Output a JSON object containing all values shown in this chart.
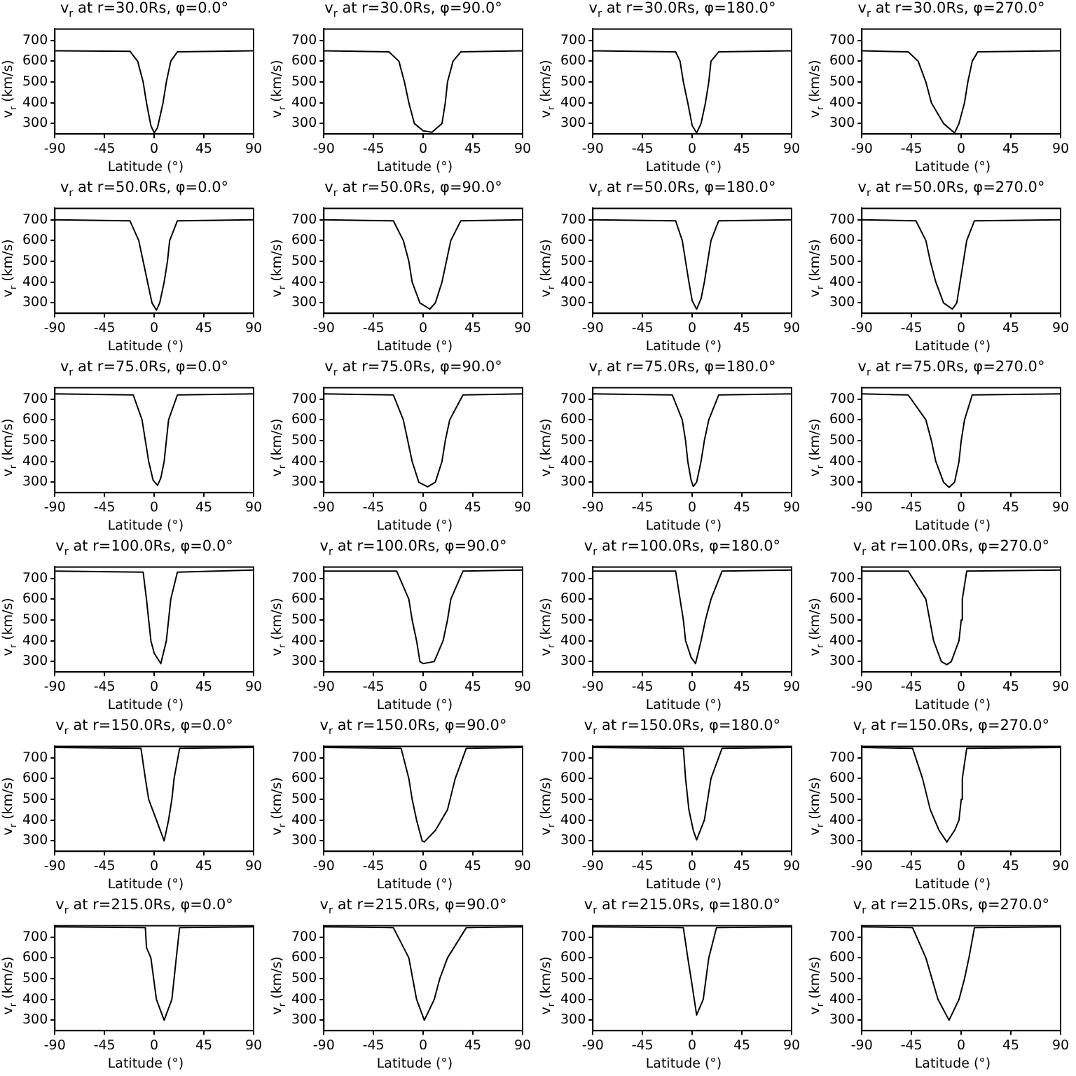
{
  "chart_data": [
    {
      "type": "line",
      "title": "v$_{r}$ at r=30.0Rs, φ=0.0°",
      "xlabel": "Latitude (°)",
      "ylabel": "v$_{r}$ (km/s)",
      "color": "#000000",
      "xlim": [
        -90,
        90
      ],
      "ylim": [
        250,
        755
      ],
      "xticks": [
        -90,
        -45,
        0,
        45,
        90
      ],
      "yticks": [
        300,
        400,
        500,
        600,
        700
      ],
      "x": [
        -90,
        -22,
        -15,
        -10,
        -7,
        -3,
        0,
        3,
        8,
        11,
        15,
        21,
        90
      ],
      "values": [
        650,
        648,
        600,
        500,
        400,
        290,
        255,
        280,
        400,
        500,
        600,
        645,
        650
      ]
    },
    {
      "type": "line",
      "title": "v$_{r}$ at r=30.0Rs, φ=90.0°",
      "xlabel": "Latitude (°)",
      "ylabel": "v$_{r}$ (km/s)",
      "color": "#000000",
      "xlim": [
        -90,
        90
      ],
      "ylim": [
        250,
        755
      ],
      "xticks": [
        -90,
        -45,
        0,
        45,
        90
      ],
      "yticks": [
        300,
        400,
        500,
        600,
        700
      ],
      "x": [
        -90,
        -31,
        -22,
        -17,
        -13,
        -8,
        0,
        8,
        17,
        20,
        22,
        27,
        34,
        90
      ],
      "values": [
        650,
        645,
        600,
        500,
        400,
        300,
        265,
        258,
        300,
        400,
        500,
        600,
        645,
        650
      ]
    },
    {
      "type": "line",
      "title": "v$_{r}$ at r=30.0Rs, φ=180.0°",
      "xlabel": "Latitude (°)",
      "ylabel": "v$_{r}$ (km/s)",
      "color": "#000000",
      "xlim": [
        -90,
        90
      ],
      "ylim": [
        250,
        755
      ],
      "xticks": [
        -90,
        -45,
        0,
        45,
        90
      ],
      "yticks": [
        300,
        400,
        500,
        600,
        700
      ],
      "x": [
        -90,
        -15,
        -11,
        -8,
        -4,
        0,
        4,
        8,
        12,
        15,
        17,
        24,
        90
      ],
      "values": [
        650,
        645,
        600,
        500,
        400,
        290,
        255,
        300,
        400,
        500,
        600,
        645,
        650
      ]
    },
    {
      "type": "line",
      "title": "v$_{r}$ at r=30.0Rs, φ=270.0°",
      "xlabel": "Latitude (°)",
      "ylabel": "v$_{r}$ (km/s)",
      "color": "#000000",
      "xlim": [
        -90,
        90
      ],
      "ylim": [
        250,
        755
      ],
      "xticks": [
        -90,
        -45,
        0,
        45,
        90
      ],
      "yticks": [
        300,
        400,
        500,
        600,
        700
      ],
      "x": [
        -90,
        -48,
        -39,
        -32,
        -27,
        -16,
        -6,
        -2,
        3,
        6,
        10,
        15,
        90
      ],
      "values": [
        650,
        645,
        600,
        500,
        400,
        300,
        255,
        300,
        400,
        500,
        600,
        645,
        650
      ]
    },
    {
      "type": "line",
      "title": "v$_{r}$ at r=50.0Rs, φ=0.0°",
      "xlabel": "Latitude (°)",
      "ylabel": "v$_{r}$ (km/s)",
      "color": "#000000",
      "xlim": [
        -90,
        90
      ],
      "ylim": [
        250,
        755
      ],
      "xticks": [
        -90,
        -45,
        0,
        45,
        90
      ],
      "yticks": [
        300,
        400,
        500,
        600,
        700
      ],
      "x": [
        -90,
        -22,
        -14,
        -10,
        -6,
        -2,
        2,
        5,
        9,
        12,
        14,
        21,
        90
      ],
      "values": [
        700,
        695,
        600,
        500,
        400,
        300,
        265,
        300,
        400,
        500,
        600,
        695,
        700
      ]
    },
    {
      "type": "line",
      "title": "v$_{r}$ at r=50.0Rs, φ=90.0°",
      "xlabel": "Latitude (°)",
      "ylabel": "v$_{r}$ (km/s)",
      "color": "#000000",
      "xlim": [
        -90,
        90
      ],
      "ylim": [
        250,
        755
      ],
      "xticks": [
        -90,
        -45,
        0,
        45,
        90
      ],
      "yticks": [
        300,
        400,
        500,
        600,
        700
      ],
      "x": [
        -90,
        -27,
        -18,
        -13,
        -10,
        -3,
        6,
        11,
        17,
        21,
        25,
        34,
        90
      ],
      "values": [
        700,
        695,
        600,
        500,
        400,
        300,
        270,
        300,
        400,
        500,
        600,
        695,
        700
      ]
    },
    {
      "type": "line",
      "title": "v$_{r}$ at r=50.0Rs, φ=180.0°",
      "xlabel": "Latitude (°)",
      "ylabel": "v$_{r}$ (km/s)",
      "color": "#000000",
      "xlim": [
        -90,
        90
      ],
      "ylim": [
        250,
        755
      ],
      "xticks": [
        -90,
        -45,
        0,
        45,
        90
      ],
      "yticks": [
        300,
        400,
        500,
        600,
        700
      ],
      "x": [
        -90,
        -15,
        -9,
        -6,
        -3,
        0,
        4,
        8,
        11,
        14,
        17,
        24,
        90
      ],
      "values": [
        700,
        695,
        600,
        500,
        400,
        310,
        270,
        320,
        400,
        500,
        600,
        695,
        700
      ]
    },
    {
      "type": "line",
      "title": "v$_{r}$ at r=50.0Rs, φ=270.0°",
      "xlabel": "Latitude (°)",
      "ylabel": "v$_{r}$ (km/s)",
      "color": "#000000",
      "xlim": [
        -90,
        90
      ],
      "ylim": [
        250,
        755
      ],
      "xticks": [
        -90,
        -45,
        0,
        45,
        90
      ],
      "yticks": [
        300,
        400,
        500,
        600,
        700
      ],
      "x": [
        -90,
        -41,
        -32,
        -28,
        -23,
        -16,
        -8,
        -4,
        -1,
        2,
        5,
        12,
        90
      ],
      "values": [
        700,
        695,
        600,
        500,
        400,
        300,
        270,
        300,
        400,
        500,
        600,
        695,
        700
      ]
    },
    {
      "type": "line",
      "title": "v$_{r}$ at r=75.0Rs, φ=0.0°",
      "xlabel": "Latitude (°)",
      "ylabel": "v$_{r}$ (km/s)",
      "color": "#000000",
      "xlim": [
        -90,
        90
      ],
      "ylim": [
        250,
        755
      ],
      "xticks": [
        -90,
        -45,
        0,
        45,
        90
      ],
      "yticks": [
        300,
        400,
        500,
        600,
        700
      ],
      "x": [
        -90,
        -19,
        -11,
        -8,
        -5,
        -1,
        3,
        6,
        9,
        11,
        13,
        21,
        90
      ],
      "values": [
        725,
        720,
        600,
        500,
        400,
        310,
        285,
        320,
        400,
        500,
        600,
        720,
        725
      ]
    },
    {
      "type": "line",
      "title": "v$_{r}$ at r=75.0Rs, φ=90.0°",
      "xlabel": "Latitude (°)",
      "ylabel": "v$_{r}$ (km/s)",
      "color": "#000000",
      "xlim": [
        -90,
        90
      ],
      "ylim": [
        250,
        755
      ],
      "xticks": [
        -90,
        -45,
        0,
        45,
        90
      ],
      "yticks": [
        300,
        400,
        500,
        600,
        700
      ],
      "x": [
        -90,
        -27,
        -18,
        -14,
        -10,
        -4,
        4,
        11,
        17,
        20,
        24,
        36,
        90
      ],
      "values": [
        725,
        720,
        600,
        500,
        400,
        300,
        278,
        300,
        400,
        500,
        600,
        720,
        725
      ]
    },
    {
      "type": "line",
      "title": "v$_{r}$ at r=75.0Rs, φ=180.0°",
      "xlabel": "Latitude (°)",
      "ylabel": "v$_{r}$ (km/s)",
      "color": "#000000",
      "xlim": [
        -90,
        90
      ],
      "ylim": [
        250,
        755
      ],
      "xticks": [
        -90,
        -45,
        0,
        45,
        90
      ],
      "yticks": [
        300,
        400,
        500,
        600,
        700
      ],
      "x": [
        -90,
        -18,
        -9,
        -6,
        -4,
        -1,
        1,
        4,
        8,
        11,
        15,
        24,
        90
      ],
      "values": [
        725,
        720,
        600,
        500,
        400,
        310,
        280,
        300,
        400,
        500,
        600,
        720,
        725
      ]
    },
    {
      "type": "line",
      "title": "v$_{r}$ at r=75.0Rs, φ=270.0°",
      "xlabel": "Latitude (°)",
      "ylabel": "v$_{r}$ (km/s)",
      "color": "#000000",
      "xlim": [
        -90,
        90
      ],
      "ylim": [
        250,
        755
      ],
      "xticks": [
        -90,
        -45,
        0,
        45,
        90
      ],
      "yticks": [
        300,
        400,
        500,
        600,
        700
      ],
      "x": [
        -90,
        -48,
        -32,
        -27,
        -23,
        -16,
        -11,
        -6,
        -2,
        0,
        3,
        10,
        90
      ],
      "values": [
        725,
        720,
        600,
        500,
        400,
        300,
        275,
        300,
        400,
        500,
        600,
        720,
        725
      ]
    },
    {
      "type": "line",
      "title": "v$_{r}$ at r=100.0Rs, φ=0.0°",
      "xlabel": "Latitude (°)",
      "ylabel": "v$_{r}$ (km/s)",
      "color": "#000000",
      "xlim": [
        -90,
        90
      ],
      "ylim": [
        250,
        755
      ],
      "xticks": [
        -90,
        -45,
        0,
        45,
        90
      ],
      "yticks": [
        300,
        400,
        500,
        600,
        700
      ],
      "x": [
        -90,
        -10,
        -7,
        -5,
        -3,
        0,
        6,
        11,
        13,
        15,
        21,
        90
      ],
      "values": [
        735,
        730,
        600,
        500,
        400,
        340,
        290,
        400,
        500,
        600,
        730,
        740
      ]
    },
    {
      "type": "line",
      "title": "v$_{r}$ at r=100.0Rs, φ=90.0°",
      "xlabel": "Latitude (°)",
      "ylabel": "v$_{r}$ (km/s)",
      "color": "#000000",
      "xlim": [
        -90,
        90
      ],
      "ylim": [
        250,
        755
      ],
      "xticks": [
        -90,
        -45,
        0,
        45,
        90
      ],
      "yticks": [
        300,
        400,
        500,
        600,
        700
      ],
      "x": [
        -90,
        -24,
        -13,
        -10,
        -6,
        -3,
        0,
        10,
        18,
        22,
        25,
        36,
        90
      ],
      "values": [
        735,
        735,
        600,
        500,
        400,
        300,
        290,
        300,
        400,
        500,
        600,
        735,
        740
      ]
    },
    {
      "type": "line",
      "title": "v$_{r}$ at r=100.0Rs, φ=180.0°",
      "xlabel": "Latitude (°)",
      "ylabel": "v$_{r}$ (km/s)",
      "color": "#000000",
      "xlim": [
        -90,
        90
      ],
      "ylim": [
        250,
        755
      ],
      "xticks": [
        -90,
        -45,
        0,
        45,
        90
      ],
      "yticks": [
        300,
        400,
        500,
        600,
        700
      ],
      "x": [
        -90,
        -15,
        -11,
        -8,
        -6,
        -1,
        3,
        8,
        12,
        17,
        27,
        90
      ],
      "values": [
        735,
        735,
        600,
        500,
        400,
        320,
        290,
        400,
        500,
        600,
        735,
        740
      ]
    },
    {
      "type": "line",
      "title": "v$_{r}$ at r=100.0Rs, φ=270.0°",
      "xlabel": "Latitude (°)",
      "ylabel": "v$_{r}$ (km/s)",
      "color": "#000000",
      "xlim": [
        -90,
        90
      ],
      "ylim": [
        250,
        755
      ],
      "xticks": [
        -90,
        -45,
        0,
        45,
        90
      ],
      "yticks": [
        300,
        400,
        500,
        600,
        700
      ],
      "x": [
        -90,
        -48,
        -32,
        -25,
        -18,
        -13,
        -9,
        -2,
        0,
        1,
        5,
        90
      ],
      "values": [
        735,
        735,
        600,
        400,
        300,
        285,
        300,
        400,
        500,
        600,
        735,
        740
      ]
    },
    {
      "type": "line",
      "title": "v$_{r}$ at r=150.0Rs, φ=0.0°",
      "xlabel": "Latitude (°)",
      "ylabel": "v$_{r}$ (km/s)",
      "color": "#000000",
      "xlim": [
        -90,
        90
      ],
      "ylim": [
        250,
        755
      ],
      "xticks": [
        -90,
        -45,
        0,
        45,
        90
      ],
      "yticks": [
        300,
        400,
        500,
        600,
        700
      ],
      "x": [
        -90,
        -12,
        -8,
        -5,
        2,
        9,
        13,
        16,
        18,
        23,
        90
      ],
      "values": [
        750,
        745,
        600,
        500,
        400,
        300,
        400,
        500,
        600,
        745,
        750
      ]
    },
    {
      "type": "line",
      "title": "v$_{r}$ at r=150.0Rs, φ=90.0°",
      "xlabel": "Latitude (°)",
      "ylabel": "v$_{r}$ (km/s)",
      "color": "#000000",
      "xlim": [
        -90,
        90
      ],
      "ylim": [
        250,
        755
      ],
      "xticks": [
        -90,
        -45,
        0,
        45,
        90
      ],
      "yticks": [
        300,
        400,
        500,
        600,
        700
      ],
      "x": [
        -90,
        -20,
        -13,
        -10,
        -6,
        -1,
        1,
        11,
        22,
        29,
        39,
        90
      ],
      "values": [
        750,
        745,
        600,
        500,
        400,
        300,
        295,
        350,
        450,
        600,
        745,
        750
      ]
    },
    {
      "type": "line",
      "title": "v$_{r}$ at r=150.0Rs, φ=180.0°",
      "xlabel": "Latitude (°)",
      "ylabel": "v$_{r}$ (km/s)",
      "color": "#000000",
      "xlim": [
        -90,
        90
      ],
      "ylim": [
        250,
        755
      ],
      "xticks": [
        -90,
        -45,
        0,
        45,
        90
      ],
      "yticks": [
        300,
        400,
        500,
        600,
        700
      ],
      "x": [
        -90,
        -8,
        -6,
        -3,
        1,
        4,
        11,
        14,
        17,
        27,
        90
      ],
      "values": [
        750,
        745,
        600,
        450,
        350,
        305,
        400,
        500,
        600,
        745,
        750
      ]
    },
    {
      "type": "line",
      "title": "v$_{r}$ at r=150.0Rs, φ=270.0°",
      "xlabel": "Latitude (°)",
      "ylabel": "v$_{r}$ (km/s)",
      "color": "#000000",
      "xlim": [
        -90,
        90
      ],
      "ylim": [
        250,
        755
      ],
      "xticks": [
        -90,
        -45,
        0,
        45,
        90
      ],
      "yticks": [
        300,
        400,
        500,
        600,
        700
      ],
      "x": [
        -90,
        -44,
        -35,
        -28,
        -20,
        -13,
        -6,
        -2,
        0,
        1,
        5,
        90
      ],
      "values": [
        750,
        745,
        600,
        450,
        350,
        295,
        350,
        400,
        500,
        600,
        745,
        750
      ]
    },
    {
      "type": "line",
      "title": "v$_{r}$ at r=215.0Rs, φ=0.0°",
      "xlabel": "Latitude (°)",
      "ylabel": "v$_{r}$ (km/s)",
      "color": "#000000",
      "xlim": [
        -90,
        90
      ],
      "ylim": [
        250,
        755
      ],
      "xticks": [
        -90,
        -45,
        0,
        45,
        90
      ],
      "yticks": [
        300,
        400,
        500,
        600,
        700
      ],
      "x": [
        -90,
        -8,
        -7,
        -3,
        2,
        9,
        16,
        18,
        20,
        23,
        90
      ],
      "values": [
        750,
        745,
        650,
        600,
        400,
        300,
        400,
        500,
        600,
        745,
        750
      ]
    },
    {
      "type": "line",
      "title": "v$_{r}$ at r=215.0Rs, φ=90.0°",
      "xlabel": "Latitude (°)",
      "ylabel": "v$_{r}$ (km/s)",
      "color": "#000000",
      "xlim": [
        -90,
        90
      ],
      "ylim": [
        250,
        755
      ],
      "xticks": [
        -90,
        -45,
        0,
        45,
        90
      ],
      "yticks": [
        300,
        400,
        500,
        600,
        700
      ],
      "x": [
        -90,
        -27,
        -13,
        -6,
        1,
        10,
        15,
        22,
        39,
        90
      ],
      "values": [
        750,
        745,
        600,
        400,
        300,
        400,
        500,
        600,
        745,
        750
      ]
    },
    {
      "type": "line",
      "title": "v$_{r}$ at r=215.0Rs, φ=180.0°",
      "xlabel": "Latitude (°)",
      "ylabel": "v$_{r}$ (km/s)",
      "color": "#000000",
      "xlim": [
        -90,
        90
      ],
      "ylim": [
        250,
        755
      ],
      "xticks": [
        -90,
        -45,
        0,
        45,
        90
      ],
      "yticks": [
        300,
        400,
        500,
        600,
        700
      ],
      "x": [
        -90,
        -8,
        -4,
        -1,
        4,
        10,
        15,
        22,
        90
      ],
      "values": [
        750,
        745,
        600,
        500,
        325,
        400,
        600,
        745,
        750
      ]
    },
    {
      "type": "line",
      "title": "v$_{r}$ at r=215.0Rs, φ=270.0°",
      "xlabel": "Latitude (°)",
      "ylabel": "v$_{r}$ (km/s)",
      "color": "#000000",
      "xlim": [
        -90,
        90
      ],
      "ylim": [
        250,
        755
      ],
      "xticks": [
        -90,
        -45,
        0,
        45,
        90
      ],
      "yticks": [
        300,
        400,
        500,
        600,
        700
      ],
      "x": [
        -90,
        -44,
        -32,
        -21,
        -11,
        -2,
        3,
        7,
        12,
        90
      ],
      "values": [
        750,
        745,
        600,
        400,
        300,
        400,
        500,
        600,
        745,
        750
      ]
    }
  ]
}
